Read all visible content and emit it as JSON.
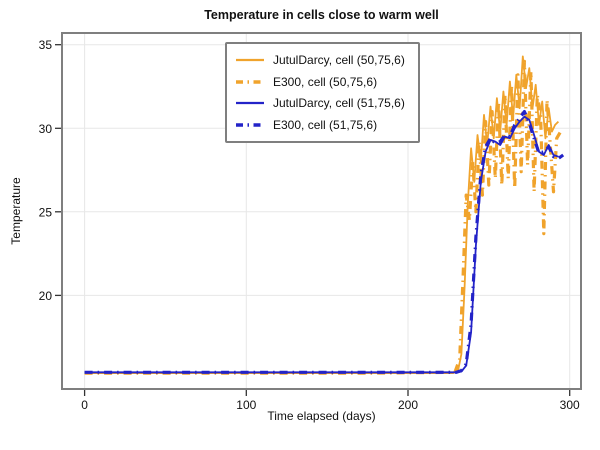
{
  "chart_data": {
    "type": "line",
    "title": "Temperature in cells close to warm well",
    "xlabel": "Time elapsed (days)",
    "ylabel": "Temperature",
    "xlim": [
      -14,
      307
    ],
    "ylim": [
      14.4,
      35.7
    ],
    "xticks": [
      0,
      100,
      200,
      300
    ],
    "yticks": [
      20,
      25,
      30,
      35
    ],
    "grid": true,
    "grid_color": "#e7e7e7",
    "border_color": "#7f7f7f",
    "tick_color": "#333333",
    "legend_position": "top-center",
    "colors": {
      "orange": "#f0a32c",
      "blue": "#2323c8"
    },
    "series": [
      {
        "name": "JutulDarcy, cell (50,75,6)",
        "color": "#f0a32c",
        "style": "solid",
        "width": 1.8,
        "x": [
          0,
          60,
          120,
          180,
          228,
          231,
          233,
          235,
          237,
          239,
          241,
          243,
          245,
          247,
          249,
          251,
          253,
          255,
          257,
          259,
          261,
          263,
          265,
          267,
          269,
          271,
          273,
          275,
          277,
          279,
          281,
          283,
          285,
          287,
          289,
          291,
          293
        ],
        "y": [
          15.35,
          15.35,
          15.35,
          15.35,
          15.35,
          15.5,
          16.5,
          20.5,
          25.5,
          28.8,
          26.8,
          29.6,
          28.0,
          30.8,
          29.0,
          31.3,
          29.4,
          31.8,
          29.8,
          32.2,
          30.2,
          32.8,
          30.6,
          33.2,
          31.2,
          34.3,
          32.4,
          33.6,
          31.2,
          32.6,
          30.2,
          31.6,
          29.4,
          31.2,
          29.8,
          30.2,
          30.4
        ]
      },
      {
        "name": "E300, cell (50,75,6)",
        "color": "#f0a32c",
        "style": "dash-dot",
        "width": 3.2,
        "x": [
          0,
          60,
          120,
          180,
          229,
          232,
          234,
          236,
          238,
          240,
          242,
          244,
          246,
          248,
          250,
          252,
          254,
          256,
          258,
          260,
          262,
          264,
          266,
          268,
          270,
          272,
          274,
          276,
          278,
          280,
          282,
          284,
          286,
          288,
          290,
          292,
          295
        ],
        "y": [
          15.35,
          15.35,
          15.35,
          15.35,
          15.4,
          16.2,
          21.0,
          26.0,
          24.5,
          28.0,
          25.0,
          29.2,
          26.0,
          30.4,
          26.6,
          31.0,
          27.0,
          31.6,
          26.6,
          32.0,
          27.0,
          32.6,
          26.4,
          33.2,
          27.4,
          34.0,
          27.8,
          33.4,
          26.2,
          32.0,
          30.8,
          23.7,
          31.7,
          29.0,
          26.2,
          29.4,
          29.9
        ]
      },
      {
        "name": "JutulDarcy, cell (51,75,6)",
        "color": "#2323c8",
        "style": "solid",
        "width": 1.8,
        "x": [
          0,
          60,
          120,
          180,
          230,
          233,
          236,
          239,
          242,
          245,
          248,
          251,
          254,
          257,
          260,
          263,
          266,
          269,
          272,
          275,
          278,
          281,
          284,
          287,
          290,
          293
        ],
        "y": [
          15.4,
          15.4,
          15.4,
          15.4,
          15.4,
          15.45,
          15.8,
          17.8,
          23.0,
          26.8,
          28.6,
          29.3,
          29.2,
          29.0,
          29.5,
          29.4,
          30.0,
          30.4,
          30.7,
          30.5,
          29.6,
          28.6,
          28.4,
          29.0,
          28.4,
          28.3
        ]
      },
      {
        "name": "E300, cell (51,75,6)",
        "color": "#2323c8",
        "style": "dash-dot",
        "width": 3.2,
        "x": [
          0,
          60,
          120,
          180,
          230,
          233,
          236,
          239,
          242,
          245,
          248,
          251,
          254,
          257,
          260,
          263,
          266,
          269,
          272,
          275,
          278,
          281,
          284,
          287,
          290,
          293,
          296
        ],
        "y": [
          15.4,
          15.4,
          15.4,
          15.4,
          15.4,
          15.5,
          15.9,
          18.3,
          23.5,
          27.2,
          28.9,
          29.4,
          29.1,
          29.2,
          29.6,
          29.5,
          30.2,
          30.6,
          31.0,
          30.3,
          29.4,
          28.5,
          28.6,
          28.9,
          28.3,
          28.2,
          28.4
        ]
      }
    ]
  }
}
